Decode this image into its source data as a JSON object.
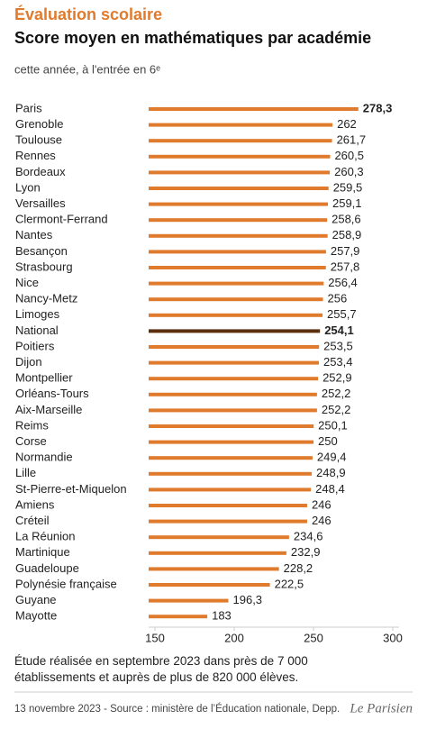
{
  "header": {
    "kicker": "Évaluation scolaire",
    "title": "Score moyen en mathématiques par académie",
    "subtitle": "cette année, à l'entrée en 6ᵉ"
  },
  "chart_data": {
    "type": "bar",
    "orientation": "horizontal",
    "categories": [
      "Paris",
      "Grenoble",
      "Toulouse",
      "Rennes",
      "Bordeaux",
      "Lyon",
      "Versailles",
      "Clermont-Ferrand",
      "Nantes",
      "Besançon",
      "Strasbourg",
      "Nice",
      "Nancy-Metz",
      "Limoges",
      "National",
      "Poitiers",
      "Dijon",
      "Montpellier",
      "Orléans-Tours",
      "Aix-Marseille",
      "Reims",
      "Corse",
      "Normandie",
      "Lille",
      "St-Pierre-et-Miquelon",
      "Amiens",
      "Créteil",
      "La Réunion",
      "Martinique",
      "Guadeloupe",
      "Polynésie française",
      "Guyane",
      "Mayotte"
    ],
    "values": [
      278.3,
      262,
      261.7,
      260.5,
      260.3,
      259.5,
      259.1,
      258.6,
      258.9,
      257.9,
      257.8,
      256.4,
      256,
      255.7,
      254.1,
      253.5,
      253.4,
      252.9,
      252.2,
      252.2,
      250.1,
      250,
      249.4,
      248.9,
      248.4,
      246,
      246,
      234.6,
      232.9,
      228.2,
      222.5,
      196.3,
      183
    ],
    "value_labels": [
      "278,3",
      "262",
      "261,7",
      "260,5",
      "260,3",
      "259,5",
      "259,1",
      "258,6",
      "258,9",
      "257,9",
      "257,8",
      "256,4",
      "256",
      "255,7",
      "254,1",
      "253,5",
      "253,4",
      "252,9",
      "252,2",
      "252,2",
      "250,1",
      "250",
      "249,4",
      "248,9",
      "248,4",
      "246",
      "246",
      "234,6",
      "232,9",
      "228,2",
      "222,5",
      "196,3",
      "183"
    ],
    "colors": [
      "#e07a2c",
      "#e07a2c",
      "#e07a2c",
      "#e07a2c",
      "#e07a2c",
      "#e07a2c",
      "#e07a2c",
      "#e07a2c",
      "#e07a2c",
      "#e07a2c",
      "#e07a2c",
      "#e07a2c",
      "#e07a2c",
      "#e07a2c",
      "#5b2e0e",
      "#e07a2c",
      "#e07a2c",
      "#e07a2c",
      "#e07a2c",
      "#e07a2c",
      "#e07a2c",
      "#e07a2c",
      "#e07a2c",
      "#e07a2c",
      "#e07a2c",
      "#e07a2c",
      "#e07a2c",
      "#e07a2c",
      "#e07a2c",
      "#e07a2c",
      "#e07a2c",
      "#e07a2c",
      "#e07a2c"
    ],
    "label_weights": [
      "bold",
      "normal",
      "normal",
      "normal",
      "normal",
      "normal",
      "normal",
      "normal",
      "normal",
      "normal",
      "normal",
      "normal",
      "normal",
      "normal",
      "bold",
      "normal",
      "normal",
      "normal",
      "normal",
      "normal",
      "normal",
      "normal",
      "normal",
      "normal",
      "normal",
      "normal",
      "normal",
      "normal",
      "normal",
      "normal",
      "normal",
      "normal",
      "normal"
    ],
    "xlim": [
      146,
      304
    ],
    "xticks": [
      150,
      200,
      250,
      300
    ]
  },
  "footer": {
    "note": "Étude réalisée en septembre 2023 dans près de 7 000 établissements et auprès de plus de 820 000 élèves.",
    "source": "13 novembre 2023 - Source : ministère de l’Éducation nationale, Depp.",
    "logo": "Le Parisien"
  }
}
